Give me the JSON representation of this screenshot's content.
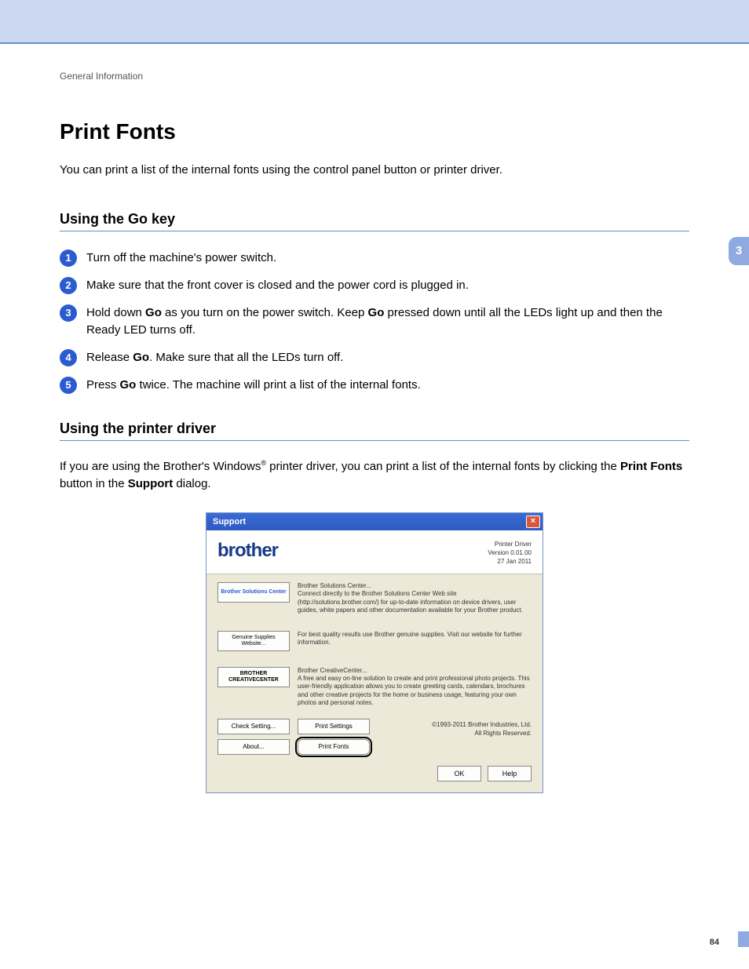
{
  "breadcrumb": "General Information",
  "title": "Print Fonts",
  "side_tab": "3",
  "page_number": "84",
  "intro": "You can print a list of the internal fonts using the control panel button or printer driver.",
  "section1": {
    "heading": "Using the Go key",
    "steps": [
      "Turn off the machine's power switch.",
      "Make sure that the front cover is closed and the power cord is plugged in.",
      "Hold down <b>Go</b> as you turn on the power switch. Keep <b>Go</b> pressed down until all the LEDs light up and then the Ready LED turns off.",
      "Release <b>Go</b>. Make sure that all the LEDs turn off.",
      "Press <b>Go</b> twice. The machine will print a list of the internal fonts."
    ]
  },
  "section2": {
    "heading": "Using the printer driver",
    "body": "If you are using the Brother's Windows<sup>®</sup> printer driver, you can print a list of the internal fonts by clicking the <b>Print Fonts</b> button in the <b>Support</b> dialog."
  },
  "dialog": {
    "title": "Support",
    "logo": "brother",
    "meta_line1": "Printer Driver",
    "meta_line2": "Version 0.01.00",
    "meta_line3": "27 Jan 2011",
    "row1": {
      "btn": "Brother Solutions Center",
      "title": "Brother Solutions Center...",
      "desc": "Connect directly to the Brother Solutions Center Web site (http://solutions.brother.com/) for up-to-date information on device drivers, user guides, white papers and other documentation available for your Brother product."
    },
    "row2": {
      "btn": "Genuine Supplies Website...",
      "desc": "For best quality results use Brother genuine supplies. Visit our website for further information."
    },
    "row3": {
      "btn": "BROTHER CREATIVECENTER",
      "title": "Brother CreativeCenter...",
      "desc": "A free and easy on-line solution to create and print professional photo projects. This user-friendly application allows you to create greeting cards, calendars, brochures and other creative projects for the home or business usage, featuring your own photos and personal notes."
    },
    "check_setting": "Check Setting...",
    "about": "About...",
    "print_settings": "Print Settings",
    "print_fonts": "Print Fonts",
    "copyright1": "©1993-2011 Brother Industries, Ltd.",
    "copyright2": "All Rights Reserved.",
    "ok": "OK",
    "help": "Help"
  },
  "colors": {
    "header_bg": "#ccd8f2",
    "rule": "#6a8cd4",
    "tab": "#8faae0",
    "bullet": "#2a5bd0",
    "dialog_bg": "#ece9d8"
  }
}
